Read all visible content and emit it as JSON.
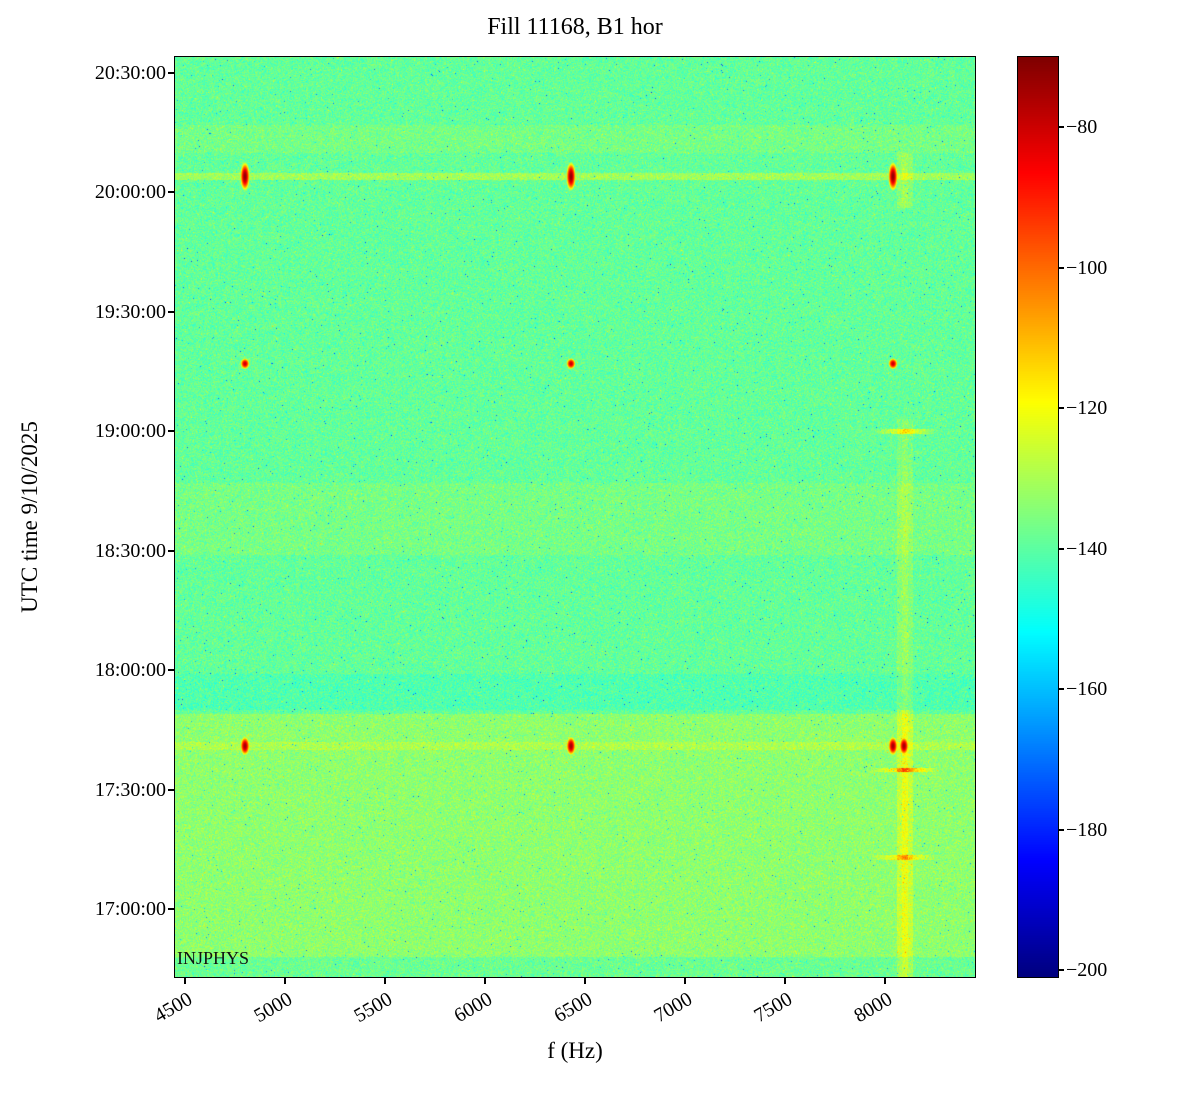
{
  "chart_data": {
    "type": "heatmap",
    "title": "Fill 11168, B1 hor",
    "xlabel": "f (Hz)",
    "ylabel": "UTC time 9/10/2025",
    "annotation": "INJPHYS",
    "colormap": "jet",
    "freq_range_hz": [
      4450,
      8450
    ],
    "x_ticks": [
      "4500",
      "5000",
      "5500",
      "6000",
      "6500",
      "7000",
      "7500",
      "8000"
    ],
    "y_ticks": [
      "20:30:00",
      "20:00:00",
      "19:30:00",
      "19:00:00",
      "18:30:00",
      "18:00:00",
      "17:30:00",
      "17:00:00"
    ],
    "time_range": [
      "16:43",
      "20:34"
    ],
    "colorbar": {
      "vmin": -201,
      "vmax": -70,
      "tick_values": [
        -80,
        -100,
        -120,
        -140,
        -160,
        -180,
        -200
      ],
      "tick_labels": [
        "−80",
        "−100",
        "−120",
        "−140",
        "−160",
        "−180",
        "−200"
      ]
    },
    "background_db": -139,
    "noise_std_db": 3.5,
    "blob_sigma_f_hz": 20,
    "time_bands": [
      {
        "from": "16:43",
        "to": "16:48",
        "offset_db": 1
      },
      {
        "from": "16:48",
        "to": "17:49",
        "offset_db": 5.5
      },
      {
        "from": "17:50",
        "to": "17:59",
        "offset_db": -2.5
      },
      {
        "from": "18:29",
        "to": "18:47",
        "offset_db": 2.5
      },
      {
        "from": "20:10",
        "to": "20:17",
        "offset_db": 2.5
      }
    ],
    "vertical_band": {
      "freq_hz": 8100,
      "half_width_hz": 40,
      "segments": [
        {
          "from": "16:43",
          "to": "17:50",
          "offset_db": 11
        },
        {
          "from": "17:50",
          "to": "18:50",
          "offset_db": 6
        },
        {
          "from": "18:50",
          "to": "19:03",
          "offset_db": 4
        },
        {
          "from": "19:56",
          "to": "20:10",
          "offset_db": 7
        }
      ],
      "hot_marks": [
        {
          "time": "19:00",
          "boost_db": 20
        },
        {
          "time": "17:35",
          "boost_db": 26
        },
        {
          "time": "17:13",
          "boost_db": 18
        }
      ]
    },
    "injection_events": [
      {
        "time": "20:04",
        "freqs_hz": [
          4800,
          6430,
          8040
        ],
        "peak_db": -72,
        "sigma_t_min": 3.0,
        "streak_db": 8
      },
      {
        "time": "19:17",
        "freqs_hz": [
          4800,
          6430,
          8040
        ],
        "peak_db": -78,
        "sigma_t_min": 1.2,
        "streak_db": 0
      },
      {
        "time": "17:41",
        "freqs_hz": [
          4800,
          6430,
          8040,
          8095
        ],
        "peak_db": -74,
        "sigma_t_min": 2.0,
        "streak_db": 4
      }
    ]
  }
}
